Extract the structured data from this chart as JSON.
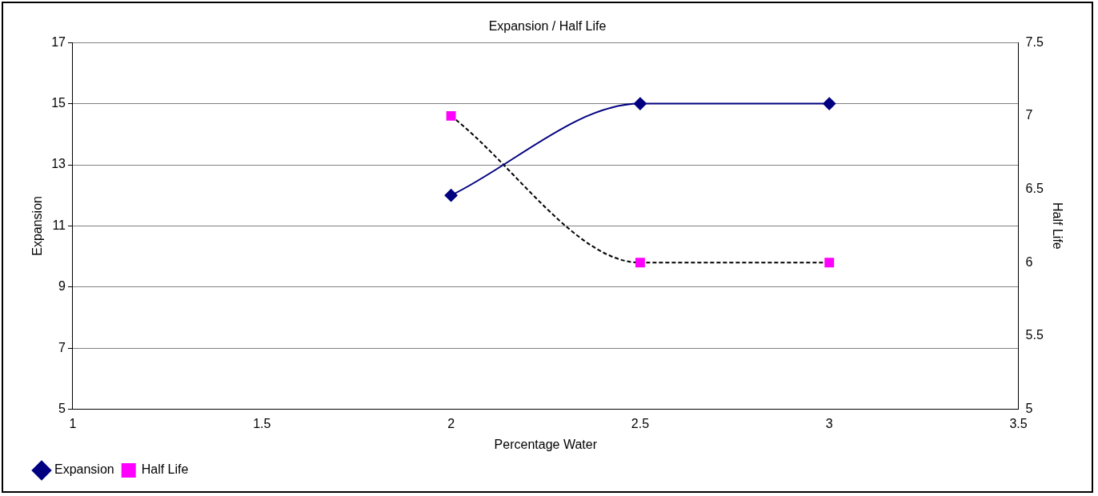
{
  "chart_data": {
    "type": "line",
    "title": "Expansion / Half Life",
    "xlabel": "Percentage Water",
    "ylabel": "Expansion",
    "y2label": "Half Life",
    "x": [
      2,
      2.5,
      3
    ],
    "series": [
      {
        "name": "Expansion",
        "color": "#000080",
        "values": [
          12,
          15,
          15
        ],
        "marker": "diamond",
        "line_style": "solid"
      },
      {
        "name": "Half Life",
        "color": "#ff00ff",
        "values": [
          7,
          6,
          6
        ],
        "marker": "square",
        "line_style": "dashed",
        "axis": "y2"
      }
    ],
    "xlim": [
      1,
      3.5
    ],
    "xticks": [
      1,
      1.5,
      2,
      2.5,
      3,
      3.5
    ],
    "ylim": [
      5,
      17
    ],
    "yticks": [
      5,
      7,
      9,
      11,
      13,
      15,
      17
    ],
    "y2lim": [
      5,
      7.5
    ],
    "y2ticks": [
      5,
      5.5,
      6,
      6.5,
      7,
      7.5
    ],
    "grid": "y",
    "legend": "bottom left"
  }
}
